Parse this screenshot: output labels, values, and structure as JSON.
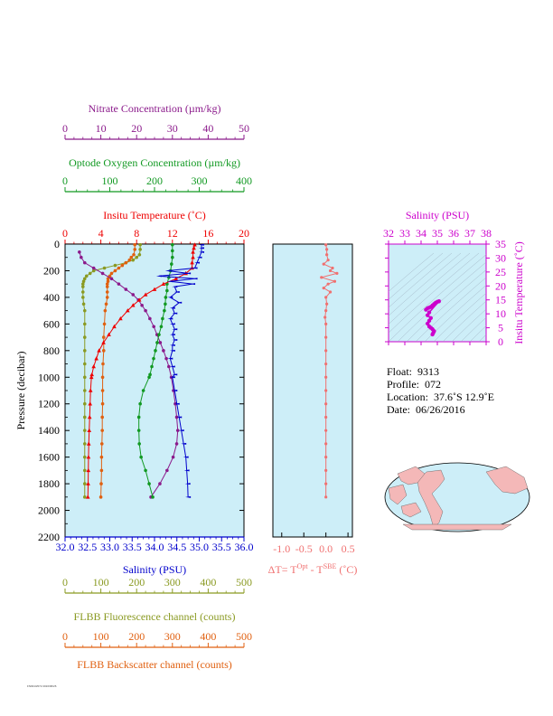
{
  "colors": {
    "nitrate": "#8b1a8b",
    "oxygen": "#119922",
    "temperature": "#ee0000",
    "salinity": "#0000cc",
    "fluorescence": "#8a9a22",
    "backscatter": "#e06010",
    "delta": "#f07070",
    "ts": "#cc00cc",
    "plot_bg": "#cdeef8",
    "land": "#f4b8b8"
  },
  "axes": {
    "nitrate": {
      "label": "Nitrate Concentration (µm/kg)",
      "ticks": [
        "0",
        "10",
        "20",
        "30",
        "40",
        "50"
      ],
      "range": [
        0,
        50
      ]
    },
    "oxygen": {
      "label": "Optode Oxygen Concentration (µm/kg)",
      "ticks": [
        "0",
        "100",
        "200",
        "300",
        "400"
      ],
      "range": [
        0,
        400
      ]
    },
    "temperature": {
      "label": "Insitu Temperature (˚C)",
      "ticks": [
        "0",
        "4",
        "8",
        "12",
        "16",
        "20"
      ],
      "range": [
        0,
        20
      ]
    },
    "pressure": {
      "label": "Pressure (decibar)",
      "ticks": [
        "0",
        "200",
        "400",
        "600",
        "800",
        "1000",
        "1200",
        "1400",
        "1600",
        "1800",
        "2000",
        "2200"
      ],
      "range": [
        0,
        2200
      ]
    },
    "salinity": {
      "label": "Salinity (PSU)",
      "ticks": [
        "32.0",
        "32.5",
        "33.0",
        "33.5",
        "34.0",
        "34.5",
        "35.0",
        "35.5",
        "36.0"
      ],
      "range": [
        32,
        36
      ]
    },
    "fluorescence": {
      "label": "FLBB Fluorescence channel (counts)",
      "ticks": [
        "0",
        "100",
        "200",
        "300",
        "400",
        "500"
      ],
      "range": [
        0,
        500
      ]
    },
    "backscatter": {
      "label": "FLBB Backscatter channel (counts)",
      "ticks": [
        "0",
        "100",
        "200",
        "300",
        "400",
        "500"
      ],
      "range": [
        0,
        500
      ]
    },
    "delta": {
      "label_main": "ΔT= T",
      "sup1": "Opt",
      "label_mid": " - T",
      "sup2": "SBE",
      "label_end": " (˚C)",
      "ticks": [
        "-1.0",
        "-0.5",
        "0.0",
        "0.5"
      ],
      "range": [
        -1.2,
        0.6
      ]
    },
    "ts_salinity": {
      "label": "Salinity (PSU)",
      "ticks": [
        "32",
        "33",
        "34",
        "35",
        "36",
        "37",
        "38"
      ],
      "range": [
        32,
        38
      ]
    },
    "ts_temperature": {
      "label": "Insitu Temperature (˚C)",
      "ticks": [
        "0",
        "5",
        "10",
        "15",
        "20",
        "25",
        "30",
        "35"
      ],
      "range": [
        0,
        35
      ]
    }
  },
  "info": {
    "float_label": "Float:",
    "float": "9313",
    "profile_label": "Profile:",
    "profile": "072",
    "location_label": "Location:",
    "location": "37.6˚S  12.9˚E",
    "date_label": "Date:",
    "date": "06/26/2016"
  },
  "footnote": "FN9313/072 2016/06/26",
  "chart_data": [
    {
      "type": "line",
      "name": "temperature_profile",
      "pressure": [
        5,
        30,
        60,
        100,
        140,
        180,
        220,
        260,
        300,
        340,
        380,
        420,
        460,
        500,
        560,
        620,
        680,
        740,
        800,
        860,
        920,
        980,
        1000,
        1100,
        1200,
        1300,
        1400,
        1500,
        1600,
        1700,
        1800,
        1900
      ],
      "temperature": [
        14.5,
        14.4,
        14.3,
        14.3,
        14.2,
        14.2,
        13.5,
        12.4,
        11.0,
        10.0,
        9.0,
        8.3,
        7.6,
        7.0,
        6.2,
        5.5,
        4.9,
        4.3,
        3.8,
        3.5,
        3.2,
        3.0,
        2.95,
        2.85,
        2.8,
        2.75,
        2.7,
        2.65,
        2.62,
        2.6,
        2.58,
        2.55
      ]
    },
    {
      "type": "line",
      "name": "salinity_profile",
      "pressure": [
        5,
        30,
        60,
        100,
        140,
        180,
        200,
        220,
        240,
        260,
        280,
        300,
        320,
        360,
        400,
        440,
        480,
        520,
        560,
        600,
        640,
        680,
        720,
        760,
        800,
        860,
        920,
        980,
        1000,
        1100,
        1200,
        1300,
        1400,
        1500,
        1600,
        1700,
        1800,
        1900
      ],
      "salinity": [
        35.05,
        35.05,
        35.05,
        35.0,
        34.95,
        34.9,
        34.3,
        34.75,
        34.1,
        34.9,
        34.35,
        34.85,
        34.45,
        34.5,
        34.35,
        34.55,
        34.4,
        34.45,
        34.35,
        34.4,
        34.45,
        34.4,
        34.45,
        34.4,
        34.4,
        34.35,
        34.4,
        34.45,
        34.4,
        34.45,
        34.5,
        34.55,
        34.6,
        34.65,
        34.7,
        34.72,
        34.74,
        34.75
      ]
    },
    {
      "type": "line",
      "name": "oxygen_profile",
      "pressure": [
        5,
        50,
        100,
        150,
        200,
        250,
        300,
        350,
        400,
        450,
        500,
        560,
        620,
        680,
        740,
        800,
        860,
        920,
        980,
        1000,
        1100,
        1200,
        1300,
        1400,
        1500,
        1600,
        1700,
        1800,
        1900
      ],
      "oxygen": [
        240,
        240,
        240,
        238,
        236,
        232,
        228,
        228,
        225,
        224,
        222,
        218,
        215,
        210,
        206,
        202,
        198,
        194,
        190,
        188,
        175,
        168,
        165,
        165,
        166,
        170,
        180,
        188,
        196
      ]
    },
    {
      "type": "line",
      "name": "nitrate_profile",
      "pressure": [
        60,
        100,
        140,
        180,
        220,
        260,
        300,
        340,
        380,
        420,
        460,
        500,
        560,
        620,
        680,
        740,
        800,
        860,
        920,
        1000,
        1100,
        1200,
        1300,
        1400,
        1500,
        1600,
        1700,
        1800,
        1900
      ],
      "nitrate": [
        4,
        4.5,
        5.5,
        8,
        10.5,
        13,
        15,
        17,
        19,
        20.5,
        21.5,
        22.5,
        23.7,
        24.8,
        25.7,
        26.6,
        27.5,
        28.3,
        29,
        29.7,
        30.3,
        30.8,
        31.2,
        31.5,
        31.2,
        30.2,
        28.5,
        26.5,
        24
      ]
    },
    {
      "type": "line",
      "name": "fluorescence_profile",
      "pressure": [
        5,
        40,
        80,
        100,
        120,
        140,
        160,
        180,
        200,
        220,
        240,
        260,
        280,
        300,
        320,
        360,
        400,
        450,
        500,
        600,
        700,
        800,
        900,
        1000,
        1100,
        1200,
        1300,
        1400,
        1500,
        1600,
        1700,
        1800,
        1900
      ],
      "fluorescence": [
        210,
        210,
        208,
        200,
        190,
        170,
        140,
        110,
        80,
        70,
        60,
        55,
        52,
        50,
        50,
        50,
        50,
        52,
        55,
        55,
        55,
        55,
        55,
        55,
        55,
        55,
        55,
        55,
        55,
        55,
        55,
        55,
        55
      ]
    },
    {
      "type": "line",
      "name": "backscatter_profile",
      "pressure": [
        5,
        40,
        80,
        100,
        120,
        140,
        160,
        180,
        200,
        220,
        240,
        260,
        280,
        300,
        320,
        360,
        400,
        450,
        500,
        600,
        700,
        800,
        900,
        1000,
        1100,
        1200,
        1300,
        1400,
        1500,
        1600,
        1700,
        1800,
        1900
      ],
      "backscatter": [
        195,
        195,
        192,
        185,
        180,
        170,
        160,
        150,
        140,
        130,
        125,
        120,
        120,
        118,
        118,
        118,
        118,
        115,
        112,
        110,
        108,
        108,
        106,
        105,
        105,
        105,
        104,
        104,
        103,
        102,
        102,
        101,
        100
      ]
    },
    {
      "type": "scatter",
      "name": "delta_t_profile",
      "pressure": [
        5,
        40,
        80,
        120,
        150,
        180,
        200,
        220,
        250,
        280,
        300,
        330,
        360,
        400,
        450,
        500,
        550,
        600,
        700,
        800,
        900,
        1000,
        1100,
        1200,
        1300,
        1400,
        1500,
        1600,
        1700,
        1800,
        1900
      ],
      "delta_t": [
        0.0,
        0.02,
        0.02,
        0.05,
        -0.05,
        0.15,
        0.1,
        0.25,
        -0.1,
        0.2,
        0.05,
        -0.05,
        0.1,
        0.0,
        0.02,
        0.0,
        -0.02,
        0.0,
        0.0,
        0.0,
        0.0,
        0.0,
        0.0,
        0.0,
        0.0,
        0.0,
        0.0,
        0.0,
        0.0,
        0.0,
        0.0
      ]
    },
    {
      "type": "scatter",
      "name": "ts_diagram",
      "salinity": [
        34.3,
        34.4,
        34.5,
        34.6,
        34.7,
        34.8,
        34.9,
        35.0,
        35.1,
        34.5,
        34.4,
        34.6,
        34.5,
        34.4,
        34.5,
        34.6,
        34.7,
        34.8,
        34.75,
        34.7
      ],
      "temperature": [
        11.5,
        12.0,
        12.2,
        12.5,
        13.0,
        13.5,
        14.0,
        14.3,
        14.5,
        10.5,
        9.5,
        8.5,
        7.5,
        6.5,
        5.5,
        5.0,
        4.5,
        3.8,
        3.2,
        2.6
      ]
    }
  ]
}
